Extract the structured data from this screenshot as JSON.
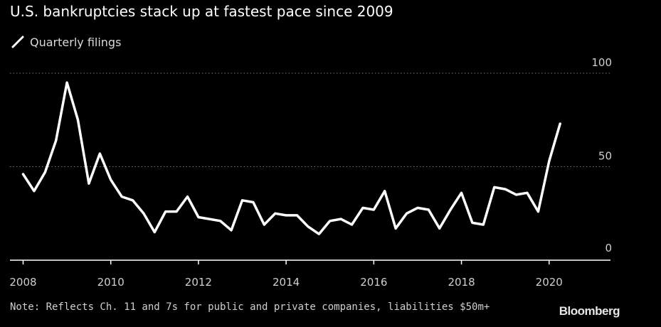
{
  "header": {
    "title": "U.S. bankruptcies stack up at fastest pace since 2009"
  },
  "footer": {
    "note": "Note: Reflects Ch. 11 and 7s for public and private companies, liabilities $50m+",
    "brand": "Bloomberg"
  },
  "colors": {
    "background": "#000000",
    "line": "#ffffff",
    "gridline": "#777777",
    "axis": "#ffffff",
    "text": "#cfcfcf"
  },
  "chart_data": {
    "type": "line",
    "title": "U.S. bankruptcies stack up at fastest pace since 2009",
    "xlabel": "",
    "ylabel": "",
    "grid": true,
    "legend_position": "top-left",
    "xlim": [
      2007.7,
      2021.4
    ],
    "ylim": [
      0,
      100
    ],
    "x_ticks": [
      2008,
      2010,
      2012,
      2014,
      2016,
      2018,
      2020
    ],
    "y_ticks": [
      0,
      50,
      100
    ],
    "series": [
      {
        "name": "Quarterly filings",
        "color": "#ffffff",
        "x": [
          2008.0,
          2008.25,
          2008.5,
          2008.75,
          2009.0,
          2009.25,
          2009.5,
          2009.75,
          2010.0,
          2010.25,
          2010.5,
          2010.75,
          2011.0,
          2011.25,
          2011.5,
          2011.75,
          2012.0,
          2012.25,
          2012.5,
          2012.75,
          2013.0,
          2013.25,
          2013.5,
          2013.75,
          2014.0,
          2014.25,
          2014.5,
          2014.75,
          2015.0,
          2015.25,
          2015.5,
          2015.75,
          2016.0,
          2016.25,
          2016.5,
          2016.75,
          2017.0,
          2017.25,
          2017.5,
          2017.75,
          2018.0,
          2018.25,
          2018.5,
          2018.75,
          2019.0,
          2019.25,
          2019.5,
          2019.75,
          2020.0,
          2020.25,
          2020.5
        ],
        "values": [
          46,
          37,
          47,
          64,
          95,
          75,
          41,
          57,
          43,
          34,
          32,
          25,
          15,
          26,
          26,
          34,
          23,
          22,
          21,
          16,
          32,
          31,
          19,
          25,
          24,
          24,
          18,
          14,
          21,
          22,
          19,
          28,
          27,
          37,
          17,
          25,
          28,
          27,
          17,
          27,
          36,
          20,
          19,
          39,
          38,
          35,
          36,
          26,
          53,
          73,
          null
        ]
      }
    ]
  }
}
